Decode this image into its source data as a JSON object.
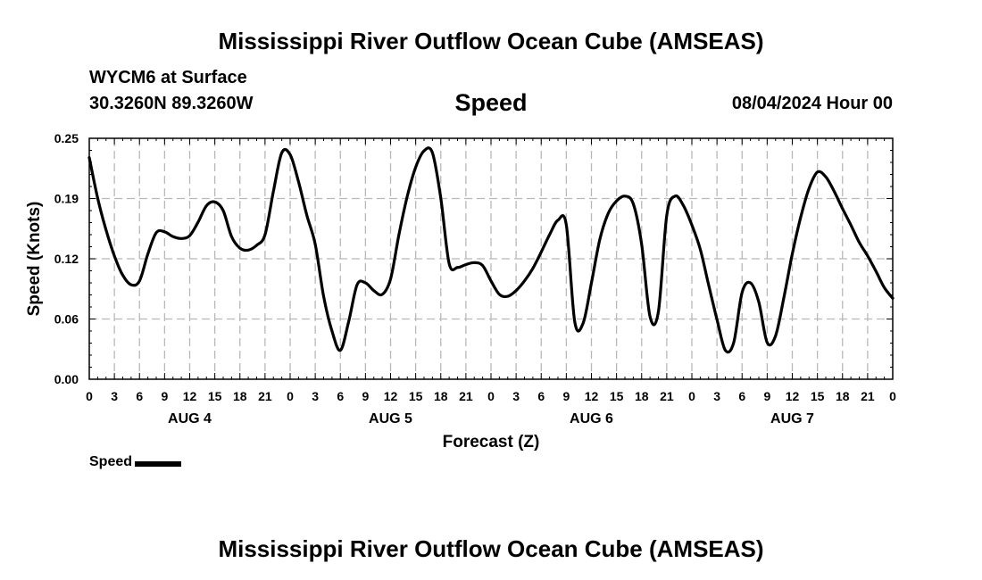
{
  "header": {
    "title": "Mississippi River Outflow Ocean Cube (AMSEAS)",
    "station": "WYCM6 at Surface",
    "coords": "30.3260N  89.3260W",
    "variable": "Speed",
    "datetime": "08/04/2024 Hour 00"
  },
  "footer": {
    "title": "Mississippi River Outflow Ocean Cube (AMSEAS)"
  },
  "legend": {
    "label": "Speed"
  },
  "chart_data": {
    "type": "line",
    "title": "Speed",
    "xlabel": "Forecast (Z)",
    "ylabel": "Speed (Knots)",
    "xlim": [
      0,
      96
    ],
    "ylim": [
      0,
      0.25
    ],
    "grid": true,
    "yticks": [
      "0.00",
      "0.06",
      "0.12",
      "0.19",
      "0.25"
    ],
    "ytick_values": [
      0,
      0.0625,
      0.125,
      0.1875,
      0.25
    ],
    "xtick_labels": [
      "0",
      "3",
      "6",
      "9",
      "12",
      "15",
      "18",
      "21",
      "0",
      "3",
      "6",
      "9",
      "12",
      "15",
      "18",
      "21",
      "0",
      "3",
      "6",
      "9",
      "12",
      "15",
      "18",
      "21",
      "0",
      "3",
      "6",
      "9",
      "12",
      "15",
      "18",
      "21",
      "0"
    ],
    "day_labels": [
      {
        "label": "AUG 4",
        "hour": 12
      },
      {
        "label": "AUG 5",
        "hour": 36
      },
      {
        "label": "AUG 6",
        "hour": 60
      },
      {
        "label": "AUG 7",
        "hour": 84
      }
    ],
    "series": [
      {
        "name": "Speed",
        "color": "#000000",
        "x": [
          0,
          1,
          2,
          3,
          4,
          5,
          6,
          7,
          8,
          9,
          10,
          11,
          12,
          13,
          14,
          15,
          16,
          17,
          18,
          19,
          20,
          21,
          22,
          23,
          24,
          25,
          26,
          27,
          28,
          29,
          30,
          31,
          32,
          33,
          34,
          35,
          36,
          37,
          38,
          39,
          40,
          41,
          42,
          43,
          44,
          45,
          46,
          47,
          48,
          49,
          50,
          51,
          52,
          53,
          54,
          55,
          56,
          57,
          58,
          59,
          60,
          61,
          62,
          63,
          64,
          65,
          66,
          67,
          68,
          69,
          70,
          71,
          72,
          73,
          74,
          75,
          76,
          77,
          78,
          79,
          80,
          81,
          82,
          83,
          84,
          85,
          86,
          87,
          88,
          89,
          90,
          91,
          92,
          93,
          94,
          95,
          96
        ],
        "values": [
          0.23,
          0.188,
          0.155,
          0.128,
          0.108,
          0.098,
          0.102,
          0.13,
          0.152,
          0.153,
          0.148,
          0.146,
          0.149,
          0.163,
          0.18,
          0.184,
          0.175,
          0.148,
          0.136,
          0.134,
          0.139,
          0.15,
          0.195,
          0.235,
          0.233,
          0.205,
          0.17,
          0.14,
          0.086,
          0.05,
          0.03,
          0.06,
          0.098,
          0.1,
          0.092,
          0.088,
          0.104,
          0.15,
          0.19,
          0.22,
          0.237,
          0.235,
          0.188,
          0.12,
          0.116,
          0.119,
          0.121,
          0.118,
          0.102,
          0.088,
          0.086,
          0.092,
          0.102,
          0.115,
          0.132,
          0.15,
          0.165,
          0.16,
          0.06,
          0.058,
          0.1,
          0.145,
          0.172,
          0.185,
          0.19,
          0.182,
          0.14,
          0.065,
          0.07,
          0.17,
          0.19,
          0.18,
          0.16,
          0.135,
          0.098,
          0.062,
          0.03,
          0.038,
          0.09,
          0.1,
          0.08,
          0.038,
          0.045,
          0.085,
          0.13,
          0.168,
          0.198,
          0.215,
          0.21,
          0.195,
          0.177,
          0.16,
          0.142,
          0.128,
          0.112,
          0.095,
          0.084
        ]
      }
    ]
  }
}
